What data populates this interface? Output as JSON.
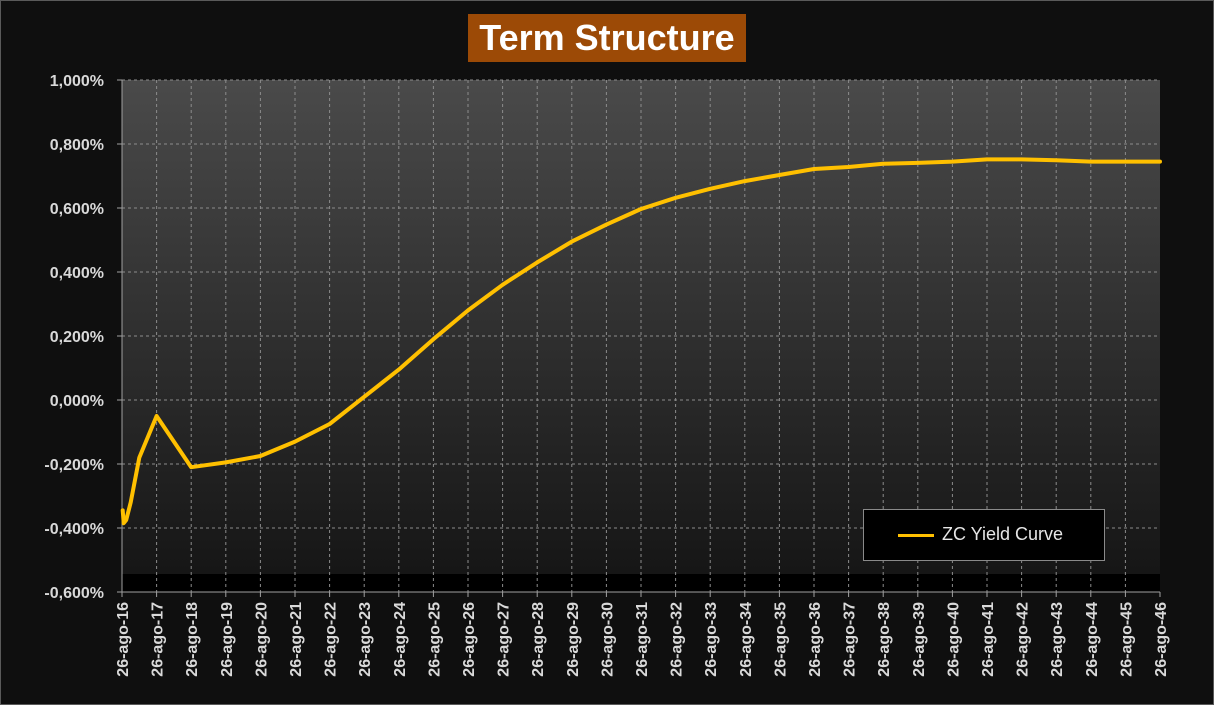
{
  "chart_data": {
    "type": "line",
    "title": "Term Structure",
    "xlabel": "",
    "ylabel": "",
    "ylim": [
      -0.6,
      1.0
    ],
    "y_ticks": [
      "-0,600%",
      "-0,400%",
      "-0,200%",
      "0,000%",
      "0,200%",
      "0,400%",
      "0,600%",
      "0,800%",
      "1,000%"
    ],
    "x_ticks": [
      "26-ago-16",
      "26-ago-17",
      "26-ago-18",
      "26-ago-19",
      "26-ago-20",
      "26-ago-21",
      "26-ago-22",
      "26-ago-23",
      "26-ago-24",
      "26-ago-25",
      "26-ago-26",
      "26-ago-27",
      "26-ago-28",
      "26-ago-29",
      "26-ago-30",
      "26-ago-31",
      "26-ago-32",
      "26-ago-33",
      "26-ago-34",
      "26-ago-35",
      "26-ago-36",
      "26-ago-37",
      "26-ago-38",
      "26-ago-39",
      "26-ago-40",
      "26-ago-41",
      "26-ago-42",
      "26-ago-43",
      "26-ago-44",
      "26-ago-45",
      "26-ago-46"
    ],
    "xlim": [
      2016.0,
      2046.0
    ],
    "grid": true,
    "legend_position": "bottom-right",
    "series": [
      {
        "name": "ZC Yield Curve",
        "color": "#ffc000",
        "points": [
          [
            2016.02,
            -0.345
          ],
          [
            2016.05,
            -0.385
          ],
          [
            2016.12,
            -0.375
          ],
          [
            2016.25,
            -0.32
          ],
          [
            2016.5,
            -0.18
          ],
          [
            2017.0,
            -0.05
          ],
          [
            2018.0,
            -0.21
          ],
          [
            2019.0,
            -0.195
          ],
          [
            2020.0,
            -0.175
          ],
          [
            2021.0,
            -0.13
          ],
          [
            2022.0,
            -0.075
          ],
          [
            2023.0,
            0.01
          ],
          [
            2024.0,
            0.095
          ],
          [
            2025.0,
            0.19
          ],
          [
            2026.0,
            0.28
          ],
          [
            2027.0,
            0.36
          ],
          [
            2028.0,
            0.43
          ],
          [
            2029.0,
            0.495
          ],
          [
            2030.0,
            0.548
          ],
          [
            2031.0,
            0.597
          ],
          [
            2032.0,
            0.632
          ],
          [
            2033.0,
            0.66
          ],
          [
            2034.0,
            0.684
          ],
          [
            2035.0,
            0.703
          ],
          [
            2036.0,
            0.722
          ],
          [
            2037.0,
            0.728
          ],
          [
            2038.0,
            0.738
          ],
          [
            2039.0,
            0.741
          ],
          [
            2040.0,
            0.745
          ],
          [
            2041.0,
            0.752
          ],
          [
            2042.0,
            0.752
          ],
          [
            2043.0,
            0.749
          ],
          [
            2044.0,
            0.745
          ],
          [
            2045.0,
            0.745
          ],
          [
            2046.0,
            0.745
          ]
        ]
      }
    ]
  },
  "colors": {
    "plot_top": "#4a4a4a",
    "plot_bottom": "#141414",
    "grid": "#8c8c8c",
    "title_bg": "#9c4a06"
  }
}
